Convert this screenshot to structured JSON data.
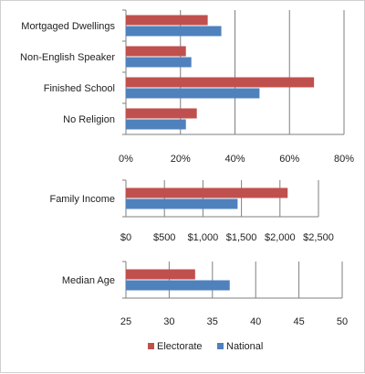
{
  "chart_data": [
    {
      "type": "bar",
      "orientation": "horizontal",
      "categories": [
        "Mortgaged Dwellings",
        "Non-English Speaker",
        "Finished School",
        "No Religion"
      ],
      "series": [
        {
          "name": "Electorate",
          "values": [
            30,
            22,
            69,
            26
          ]
        },
        {
          "name": "National",
          "values": [
            35,
            24,
            49,
            22
          ]
        }
      ],
      "xlim": [
        0,
        80
      ],
      "ticks": [
        0,
        20,
        40,
        60,
        80
      ],
      "tick_labels": [
        "0%",
        "20%",
        "40%",
        "60%",
        "80%"
      ],
      "grid": true
    },
    {
      "type": "bar",
      "orientation": "horizontal",
      "categories": [
        "Family Income"
      ],
      "series": [
        {
          "name": "Electorate",
          "values": [
            2100
          ]
        },
        {
          "name": "National",
          "values": [
            1450
          ]
        }
      ],
      "xlim": [
        0,
        2500
      ],
      "ticks": [
        0,
        500,
        1000,
        1500,
        2000,
        2500
      ],
      "tick_labels": [
        "$0",
        "$500",
        "$1,000",
        "$1,500",
        "$2,000",
        "$2,500"
      ],
      "grid": true
    },
    {
      "type": "bar",
      "orientation": "horizontal",
      "categories": [
        "Median Age"
      ],
      "series": [
        {
          "name": "Electorate",
          "values": [
            33
          ]
        },
        {
          "name": "National",
          "values": [
            37
          ]
        }
      ],
      "xlim": [
        25,
        50
      ],
      "ticks": [
        25,
        30,
        35,
        40,
        45,
        50
      ],
      "tick_labels": [
        "25",
        "30",
        "35",
        "40",
        "45",
        "50"
      ],
      "grid": true
    }
  ],
  "legend": {
    "position": "bottom",
    "items": [
      {
        "label": "Electorate",
        "color": "#c0504d"
      },
      {
        "label": "National",
        "color": "#4f81bd"
      }
    ]
  },
  "colors": {
    "electorate": "#c0504d",
    "national": "#4f81bd"
  }
}
